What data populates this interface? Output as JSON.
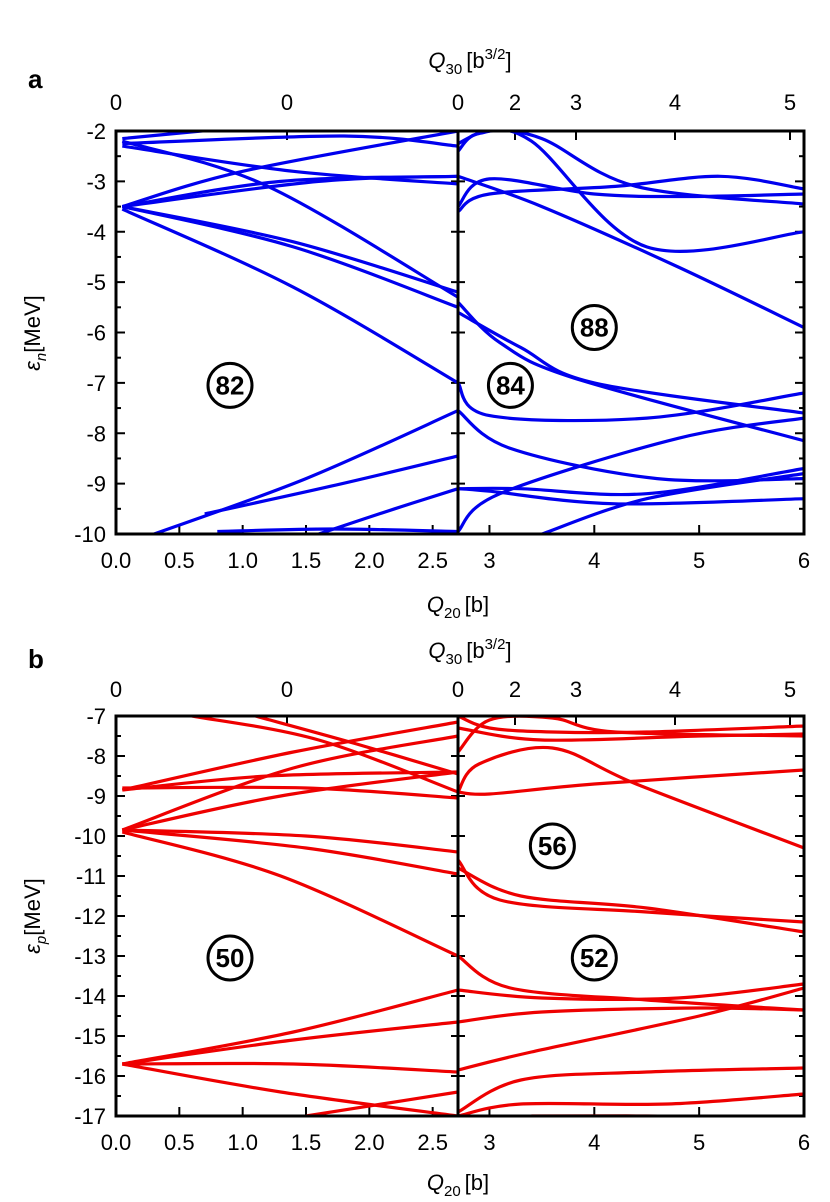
{
  "panels": [
    {
      "id": "a",
      "label": "a",
      "ylabel_main": "ε",
      "ylabel_sub": "n",
      "ylabel_unit": "[MeV]",
      "ylim": [
        -10,
        -2
      ],
      "yticks": [
        "-2",
        "-3",
        "-4",
        "-5",
        "-6",
        "-7",
        "-8",
        "-9",
        "-10"
      ],
      "left_xticks": [
        "0.0",
        "0.5",
        "1.0",
        "1.5",
        "2.0",
        "2.5"
      ],
      "right_xticks": [
        "3",
        "4",
        "5",
        "6"
      ],
      "top_xticks": [
        "0",
        "0",
        "0",
        "2",
        "3",
        "4",
        "5"
      ],
      "q30_label_main": "Q",
      "q30_label_sub": "30",
      "q30_label_unit": "[b",
      "q30_label_exp": "3/2",
      "q30_label_close": "]",
      "q20_label_main": "Q",
      "q20_label_sub": "20",
      "q20_label_unit": "[b]",
      "color": "#0000ee",
      "gaps": [
        {
          "text": "82",
          "x": 0.9,
          "y": -7.05
        },
        {
          "text": "84",
          "x": 3.2,
          "y": -7.05
        },
        {
          "text": "88",
          "x": 4.0,
          "y": -5.9
        }
      ]
    },
    {
      "id": "b",
      "label": "b",
      "ylabel_main": "ε",
      "ylabel_sub": "p",
      "ylabel_unit": "[MeV]",
      "ylim": [
        -17,
        -7
      ],
      "yticks": [
        "-7",
        "-8",
        "-9",
        "-10",
        "-11",
        "-12",
        "-13",
        "-14",
        "-15",
        "-16",
        "-17"
      ],
      "left_xticks": [
        "0.0",
        "0.5",
        "1.0",
        "1.5",
        "2.0",
        "2.5"
      ],
      "right_xticks": [
        "3",
        "4",
        "5",
        "6"
      ],
      "top_xticks": [
        "0",
        "0",
        "0",
        "2",
        "3",
        "4",
        "5"
      ],
      "q30_label_main": "Q",
      "q30_label_sub": "30",
      "q30_label_unit": "[b",
      "q30_label_exp": "3/2",
      "q30_label_close": "]",
      "q20_label_main": "Q",
      "q20_label_sub": "20",
      "q20_label_unit": "[b]",
      "color": "#ee0000",
      "gaps": [
        {
          "text": "50",
          "x": 0.9,
          "y": -13.05
        },
        {
          "text": "56",
          "x": 3.6,
          "y": -10.25
        },
        {
          "text": "52",
          "x": 4.0,
          "y": -13.05
        }
      ]
    }
  ],
  "chart_data": [
    {
      "type": "line",
      "panel": "a",
      "xlabel": "Q20 [b]",
      "top_xlabel": "Q30 [b3/2]",
      "ylabel": "εn[MeV]",
      "xlim": [
        0,
        6
      ],
      "ylim": [
        -10,
        -2
      ],
      "x_break": 2.7,
      "series": [
        {
          "x": [
            0.05,
            0.8
          ],
          "y": [
            -2.15,
            -1.97
          ]
        },
        {
          "x": [
            0.05,
            1.8,
            2.7
          ],
          "y": [
            -2.25,
            -2.1,
            -2.3
          ]
        },
        {
          "x": [
            0.05,
            1.4,
            2.7
          ],
          "y": [
            -2.3,
            -2.8,
            -3.05
          ]
        },
        {
          "x": [
            0.05,
            1.2,
            2.7
          ],
          "y": [
            -2.2,
            -3.1,
            -5.3
          ]
        },
        {
          "x": [
            0.05,
            1.0,
            2.7
          ],
          "y": [
            -3.5,
            -2.8,
            -2.0
          ]
        },
        {
          "x": [
            0.05,
            1.3,
            2.7
          ],
          "y": [
            -3.5,
            -3.0,
            -2.9
          ]
        },
        {
          "x": [
            0.05,
            1.6,
            2.7
          ],
          "y": [
            -3.5,
            -3.0,
            -2.9
          ]
        },
        {
          "x": [
            0.05,
            1.4,
            2.7
          ],
          "y": [
            -3.5,
            -4.2,
            -5.2
          ]
        },
        {
          "x": [
            0.05,
            1.4,
            2.7
          ],
          "y": [
            -3.5,
            -4.3,
            -5.5
          ]
        },
        {
          "x": [
            0.05,
            1.4,
            2.7
          ],
          "y": [
            -3.55,
            -5.1,
            -7.0
          ]
        },
        {
          "x": [
            2.7,
            3.0,
            3.5,
            4.4,
            6.0
          ],
          "y": [
            -2.25,
            -2.0,
            -2.15,
            -3.1,
            -3.45
          ]
        },
        {
          "x": [
            2.7,
            2.9,
            3.4,
            4.5,
            6.0
          ],
          "y": [
            -2.4,
            -2.05,
            -2.2,
            -4.3,
            -4.0
          ]
        },
        {
          "x": [
            2.7,
            3.0,
            4.0,
            4.9,
            6.0
          ],
          "y": [
            -3.5,
            -2.95,
            -3.25,
            -3.3,
            -3.25
          ]
        },
        {
          "x": [
            2.7,
            3.0,
            4.2,
            5.2,
            6.0
          ],
          "y": [
            -3.6,
            -3.25,
            -3.1,
            -2.9,
            -3.15
          ]
        },
        {
          "x": [
            2.7,
            3.5,
            4.8,
            6.0
          ],
          "y": [
            -2.9,
            -3.5,
            -4.7,
            -5.9
          ]
        },
        {
          "x": [
            2.7,
            3.1,
            3.8,
            6.0
          ],
          "y": [
            -5.4,
            -6.2,
            -6.9,
            -8.15
          ]
        },
        {
          "x": [
            2.7,
            3.3,
            4.0,
            6.0
          ],
          "y": [
            -5.6,
            -6.3,
            -7.0,
            -7.6
          ]
        },
        {
          "x": [
            2.7,
            3.0,
            4.5,
            6.0
          ],
          "y": [
            -7.0,
            -7.65,
            -7.7,
            -7.2
          ]
        },
        {
          "x": [
            2.7,
            3.2,
            4.6,
            6.0
          ],
          "y": [
            -7.55,
            -8.3,
            -8.9,
            -8.9
          ]
        },
        {
          "x": [
            2.7,
            3.3,
            4.5,
            6.0
          ],
          "y": [
            -9.1,
            -9.1,
            -9.2,
            -8.7
          ]
        },
        {
          "x": [
            2.7,
            3.0,
            4.2,
            6.0
          ],
          "y": [
            -9.1,
            -9.15,
            -9.4,
            -9.3
          ]
        },
        {
          "x": [
            2.7,
            3.1,
            4.8,
            6.0
          ],
          "y": [
            -9.95,
            -9.2,
            -8.1,
            -7.7
          ]
        },
        {
          "x": [
            3.5,
            4.5,
            6.0
          ],
          "y": [
            -10.0,
            -9.3,
            -8.8
          ]
        },
        {
          "x": [
            0.3,
            1.5,
            2.7
          ],
          "y": [
            -10.0,
            -8.9,
            -7.55
          ]
        },
        {
          "x": [
            0.7,
            1.7,
            2.7
          ],
          "y": [
            -9.6,
            -9.05,
            -8.45
          ]
        },
        {
          "x": [
            1.6,
            2.2,
            2.7
          ],
          "y": [
            -10.0,
            -9.5,
            -9.1
          ]
        },
        {
          "x": [
            0.8,
            1.7,
            2.7
          ],
          "y": [
            -9.95,
            -9.9,
            -9.95
          ]
        }
      ]
    },
    {
      "type": "line",
      "panel": "b",
      "xlabel": "Q20 [b]",
      "top_xlabel": "Q30 [b3/2]",
      "ylabel": "εp[MeV]",
      "xlim": [
        0,
        6
      ],
      "ylim": [
        -17,
        -7
      ],
      "x_break": 2.7,
      "series": [
        {
          "x": [
            0.05,
            1.2,
            2.7
          ],
          "y": [
            -8.85,
            -8.5,
            -8.4
          ]
        },
        {
          "x": [
            0.05,
            1.4,
            2.7
          ],
          "y": [
            -8.85,
            -7.9,
            -7.15
          ]
        },
        {
          "x": [
            0.05,
            1.4,
            2.7
          ],
          "y": [
            -9.85,
            -8.3,
            -7.5
          ]
        },
        {
          "x": [
            0.05,
            1.3,
            2.7
          ],
          "y": [
            -9.85,
            -9.0,
            -8.4
          ]
        },
        {
          "x": [
            0.05,
            1.5,
            2.7
          ],
          "y": [
            -8.8,
            -8.8,
            -9.05
          ]
        },
        {
          "x": [
            0.05,
            1.5,
            2.7
          ],
          "y": [
            -9.85,
            -10.0,
            -10.4
          ]
        },
        {
          "x": [
            0.05,
            1.5,
            2.7
          ],
          "y": [
            -9.85,
            -10.3,
            -10.95
          ]
        },
        {
          "x": [
            0.05,
            1.3,
            2.7
          ],
          "y": [
            -9.9,
            -11.0,
            -13.0
          ]
        },
        {
          "x": [
            0.6,
            1.6,
            2.7
          ],
          "y": [
            -7.0,
            -7.6,
            -8.9
          ]
        },
        {
          "x": [
            1.1,
            1.9,
            2.7
          ],
          "y": [
            -7.0,
            -7.7,
            -8.45
          ]
        },
        {
          "x": [
            0.05,
            1.4,
            2.7
          ],
          "y": [
            -15.7,
            -14.9,
            -13.85
          ]
        },
        {
          "x": [
            0.05,
            1.4,
            2.7
          ],
          "y": [
            -15.7,
            -15.1,
            -14.65
          ]
        },
        {
          "x": [
            0.05,
            1.4,
            2.7
          ],
          "y": [
            -15.7,
            -15.7,
            -15.9
          ]
        },
        {
          "x": [
            0.05,
            1.3,
            2.7
          ],
          "y": [
            -15.7,
            -16.4,
            -17.0
          ]
        },
        {
          "x": [
            1.5,
            2.1,
            2.7
          ],
          "y": [
            -17.0,
            -16.7,
            -16.4
          ]
        },
        {
          "x": [
            2.7,
            3.0,
            3.6,
            4.5,
            6.0
          ],
          "y": [
            -7.0,
            -7.3,
            -7.4,
            -7.4,
            -7.25
          ]
        },
        {
          "x": [
            2.7,
            3.5,
            5.0,
            6.0
          ],
          "y": [
            -7.3,
            -7.6,
            -7.5,
            -7.45
          ]
        },
        {
          "x": [
            2.7,
            3.0,
            3.6,
            4.2,
            6.0
          ],
          "y": [
            -7.9,
            -7.1,
            -7.05,
            -7.4,
            -7.5
          ]
        },
        {
          "x": [
            2.7,
            2.9,
            3.6,
            4.4,
            6.0
          ],
          "y": [
            -8.9,
            -8.2,
            -7.8,
            -8.7,
            -10.3
          ]
        },
        {
          "x": [
            2.7,
            3.0,
            4.0,
            6.0
          ],
          "y": [
            -8.9,
            -8.95,
            -8.7,
            -8.35
          ]
        },
        {
          "x": [
            2.7,
            3.1,
            4.5,
            6.0
          ],
          "y": [
            -10.6,
            -11.6,
            -11.9,
            -12.15
          ]
        },
        {
          "x": [
            2.7,
            3.3,
            4.5,
            6.0
          ],
          "y": [
            -10.8,
            -11.5,
            -11.8,
            -12.4
          ]
        },
        {
          "x": [
            2.7,
            3.2,
            4.5,
            6.0
          ],
          "y": [
            -13.0,
            -13.8,
            -14.1,
            -14.35
          ]
        },
        {
          "x": [
            2.7,
            3.5,
            4.8,
            6.0
          ],
          "y": [
            -13.85,
            -14.05,
            -14.05,
            -13.7
          ]
        },
        {
          "x": [
            2.7,
            3.5,
            5.0,
            6.0
          ],
          "y": [
            -14.65,
            -14.4,
            -14.3,
            -14.35
          ]
        },
        {
          "x": [
            2.7,
            3.4,
            5.0,
            6.0
          ],
          "y": [
            -15.85,
            -15.4,
            -14.5,
            -13.8
          ]
        },
        {
          "x": [
            2.7,
            3.3,
            4.5,
            6.0
          ],
          "y": [
            -16.9,
            -16.1,
            -15.9,
            -15.8
          ]
        },
        {
          "x": [
            2.7,
            3.3,
            4.7,
            6.0
          ],
          "y": [
            -17.0,
            -16.7,
            -16.7,
            -16.45
          ]
        },
        {
          "x": [
            3.4,
            4.5,
            6.0
          ],
          "y": [
            -17.0,
            -17.0,
            -17.05
          ]
        }
      ]
    }
  ]
}
